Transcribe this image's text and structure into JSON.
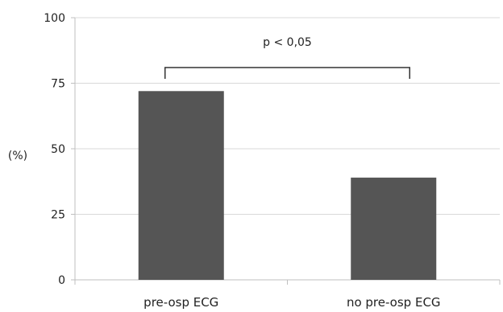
{
  "chart_data": {
    "type": "bar",
    "categories": [
      "pre-osp ECG",
      "no pre-osp ECG"
    ],
    "values": [
      72,
      39
    ],
    "ylabel": "(%)",
    "xlabel": "",
    "ylim": [
      0,
      100
    ],
    "yticks": [
      0,
      25,
      50,
      75,
      100
    ],
    "ytick_labels": [
      "0",
      "25",
      "50",
      "75",
      "100"
    ],
    "grid": true,
    "legend": "none",
    "annotation": {
      "text": "p < 0,05",
      "from_category": 0,
      "to_category": 1,
      "at_value": 81
    },
    "colors": {
      "bar": "#555555",
      "grid": "#d9d9d9",
      "axis": "#bfbfbf",
      "bracket": "#333333"
    }
  }
}
